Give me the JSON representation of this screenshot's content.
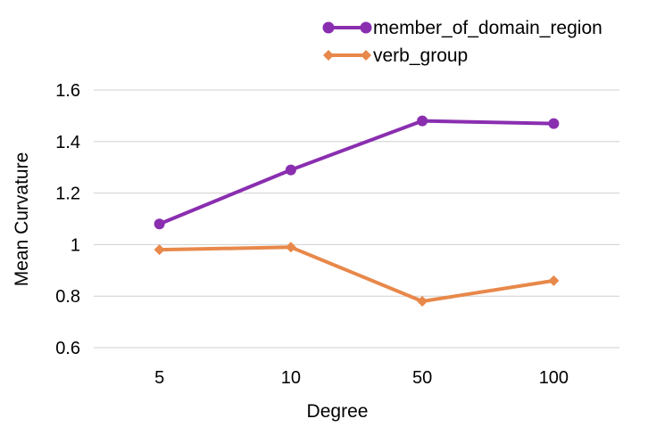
{
  "chart_data": {
    "type": "line",
    "categories": [
      "5",
      "10",
      "50",
      "100"
    ],
    "series": [
      {
        "name": "member_of_domain_region",
        "values": [
          1.08,
          1.29,
          1.48,
          1.47
        ],
        "color": "#8a2eb0",
        "marker": "circle"
      },
      {
        "name": "verb_group",
        "values": [
          0.98,
          0.99,
          0.78,
          0.86
        ],
        "color": "#e8884a",
        "marker": "diamond"
      }
    ],
    "xlabel": "Degree",
    "ylabel": "Mean Curvature",
    "ylim": [
      0.6,
      1.6
    ],
    "yticks": [
      0.6,
      0.8,
      1.0,
      1.2,
      1.4,
      1.6
    ],
    "ytick_labels": [
      "0.6",
      "0.8",
      "1",
      "1.2",
      "1.4",
      "1.6"
    ],
    "grid": true,
    "legend_position": "top-right"
  }
}
